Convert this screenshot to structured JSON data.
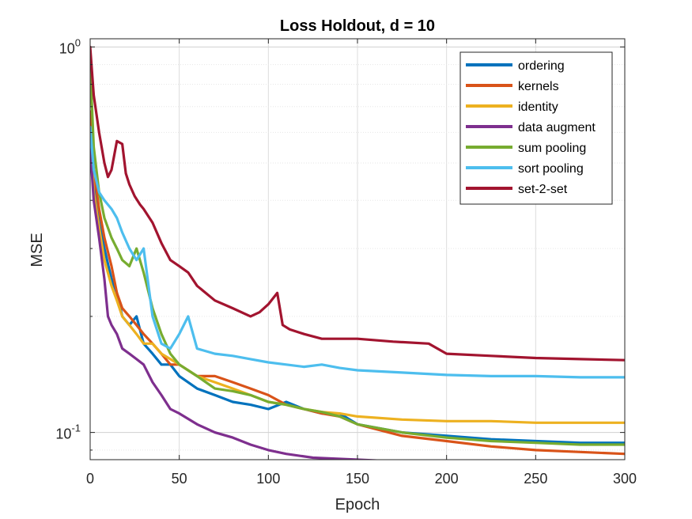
{
  "chart_data": {
    "type": "line",
    "title": "Loss Holdout, d = 10",
    "xlabel": "Epoch",
    "ylabel": "MSE",
    "xlim": [
      0,
      300
    ],
    "ylim": [
      0.085,
      1.05
    ],
    "yscale": "log",
    "grid": true,
    "legend_position": "top-right",
    "xticks": [
      0,
      50,
      100,
      150,
      200,
      250,
      300
    ],
    "xtick_labels": [
      "0",
      "50",
      "100",
      "150",
      "200",
      "250",
      "300"
    ],
    "yticks": [
      0.1,
      1
    ],
    "ytick_labels": [
      {
        "base": "10",
        "exp": "-1"
      },
      {
        "base": "10",
        "exp": "0"
      }
    ],
    "series": [
      {
        "name": "ordering",
        "color": "#0072BD",
        "x": [
          0,
          2,
          5,
          8,
          12,
          15,
          18,
          22,
          26,
          30,
          35,
          40,
          45,
          50,
          60,
          70,
          80,
          90,
          100,
          110,
          120,
          130,
          140,
          150,
          175,
          200,
          225,
          250,
          275,
          300
        ],
        "y": [
          0.65,
          0.45,
          0.35,
          0.3,
          0.25,
          0.23,
          0.2,
          0.19,
          0.2,
          0.17,
          0.16,
          0.15,
          0.15,
          0.14,
          0.13,
          0.125,
          0.12,
          0.118,
          0.115,
          0.12,
          0.115,
          0.112,
          0.112,
          0.105,
          0.1,
          0.098,
          0.096,
          0.095,
          0.094,
          0.094
        ]
      },
      {
        "name": "kernels",
        "color": "#D95319",
        "x": [
          0,
          2,
          5,
          8,
          12,
          15,
          18,
          22,
          26,
          30,
          35,
          40,
          45,
          50,
          60,
          70,
          80,
          90,
          100,
          110,
          120,
          130,
          140,
          150,
          175,
          200,
          225,
          250,
          275,
          300
        ],
        "y": [
          0.68,
          0.48,
          0.38,
          0.32,
          0.27,
          0.23,
          0.21,
          0.2,
          0.19,
          0.18,
          0.17,
          0.16,
          0.15,
          0.15,
          0.14,
          0.14,
          0.135,
          0.13,
          0.125,
          0.118,
          0.115,
          0.112,
          0.11,
          0.105,
          0.098,
          0.095,
          0.092,
          0.09,
          0.089,
          0.088
        ]
      },
      {
        "name": "identity",
        "color": "#EDB120",
        "x": [
          0,
          2,
          5,
          8,
          12,
          15,
          18,
          22,
          26,
          30,
          35,
          40,
          45,
          50,
          60,
          70,
          80,
          90,
          100,
          110,
          120,
          130,
          140,
          150,
          175,
          200,
          225,
          250,
          275,
          300
        ],
        "y": [
          0.6,
          0.42,
          0.34,
          0.28,
          0.24,
          0.22,
          0.2,
          0.19,
          0.18,
          0.17,
          0.17,
          0.16,
          0.155,
          0.15,
          0.14,
          0.135,
          0.13,
          0.125,
          0.12,
          0.118,
          0.115,
          0.113,
          0.112,
          0.11,
          0.108,
          0.107,
          0.107,
          0.106,
          0.106,
          0.106
        ]
      },
      {
        "name": "data augment",
        "color": "#7E2F8E",
        "x": [
          0,
          2,
          5,
          8,
          10,
          12,
          15,
          18,
          22,
          26,
          30,
          35,
          40,
          45,
          50,
          60,
          70,
          80,
          90,
          100,
          110,
          125,
          150,
          175,
          200,
          225,
          250,
          275,
          300
        ],
        "y": [
          0.55,
          0.4,
          0.32,
          0.25,
          0.2,
          0.19,
          0.18,
          0.165,
          0.16,
          0.155,
          0.15,
          0.135,
          0.125,
          0.115,
          0.112,
          0.105,
          0.1,
          0.097,
          0.093,
          0.09,
          0.088,
          0.086,
          0.085,
          0.084,
          0.0835,
          0.083,
          0.083,
          0.0825,
          0.0825
        ]
      },
      {
        "name": "sum pooling",
        "color": "#77AC30",
        "x": [
          0,
          2,
          5,
          8,
          12,
          15,
          18,
          22,
          26,
          30,
          35,
          40,
          45,
          50,
          60,
          70,
          80,
          90,
          100,
          110,
          120,
          130,
          140,
          150,
          175,
          200,
          225,
          250,
          275,
          300
        ],
        "y": [
          0.9,
          0.55,
          0.42,
          0.36,
          0.32,
          0.3,
          0.28,
          0.27,
          0.3,
          0.26,
          0.21,
          0.18,
          0.16,
          0.15,
          0.14,
          0.13,
          0.128,
          0.125,
          0.12,
          0.118,
          0.115,
          0.113,
          0.11,
          0.105,
          0.1,
          0.097,
          0.095,
          0.094,
          0.093,
          0.093
        ]
      },
      {
        "name": "sort pooling",
        "color": "#4DBEEE",
        "x": [
          0,
          2,
          5,
          8,
          12,
          15,
          18,
          22,
          26,
          30,
          35,
          40,
          45,
          50,
          55,
          60,
          70,
          80,
          90,
          100,
          110,
          120,
          130,
          140,
          150,
          175,
          200,
          225,
          250,
          275,
          300
        ],
        "y": [
          0.62,
          0.48,
          0.42,
          0.4,
          0.38,
          0.36,
          0.33,
          0.3,
          0.28,
          0.3,
          0.2,
          0.17,
          0.165,
          0.18,
          0.2,
          0.165,
          0.16,
          0.158,
          0.155,
          0.152,
          0.15,
          0.148,
          0.15,
          0.147,
          0.145,
          0.143,
          0.141,
          0.14,
          0.14,
          0.139,
          0.139
        ]
      },
      {
        "name": "set-2-set",
        "color": "#A2142F",
        "x": [
          0,
          2,
          5,
          8,
          10,
          12,
          15,
          18,
          20,
          22,
          25,
          28,
          30,
          35,
          40,
          45,
          50,
          55,
          60,
          70,
          80,
          90,
          95,
          100,
          105,
          108,
          112,
          120,
          130,
          150,
          170,
          190,
          200,
          225,
          250,
          275,
          300
        ],
        "y": [
          1.0,
          0.75,
          0.6,
          0.5,
          0.46,
          0.48,
          0.57,
          0.56,
          0.47,
          0.44,
          0.41,
          0.39,
          0.38,
          0.35,
          0.31,
          0.28,
          0.27,
          0.26,
          0.24,
          0.22,
          0.21,
          0.2,
          0.205,
          0.215,
          0.23,
          0.19,
          0.185,
          0.18,
          0.175,
          0.175,
          0.172,
          0.17,
          0.16,
          0.158,
          0.156,
          0.155,
          0.154
        ]
      }
    ]
  }
}
